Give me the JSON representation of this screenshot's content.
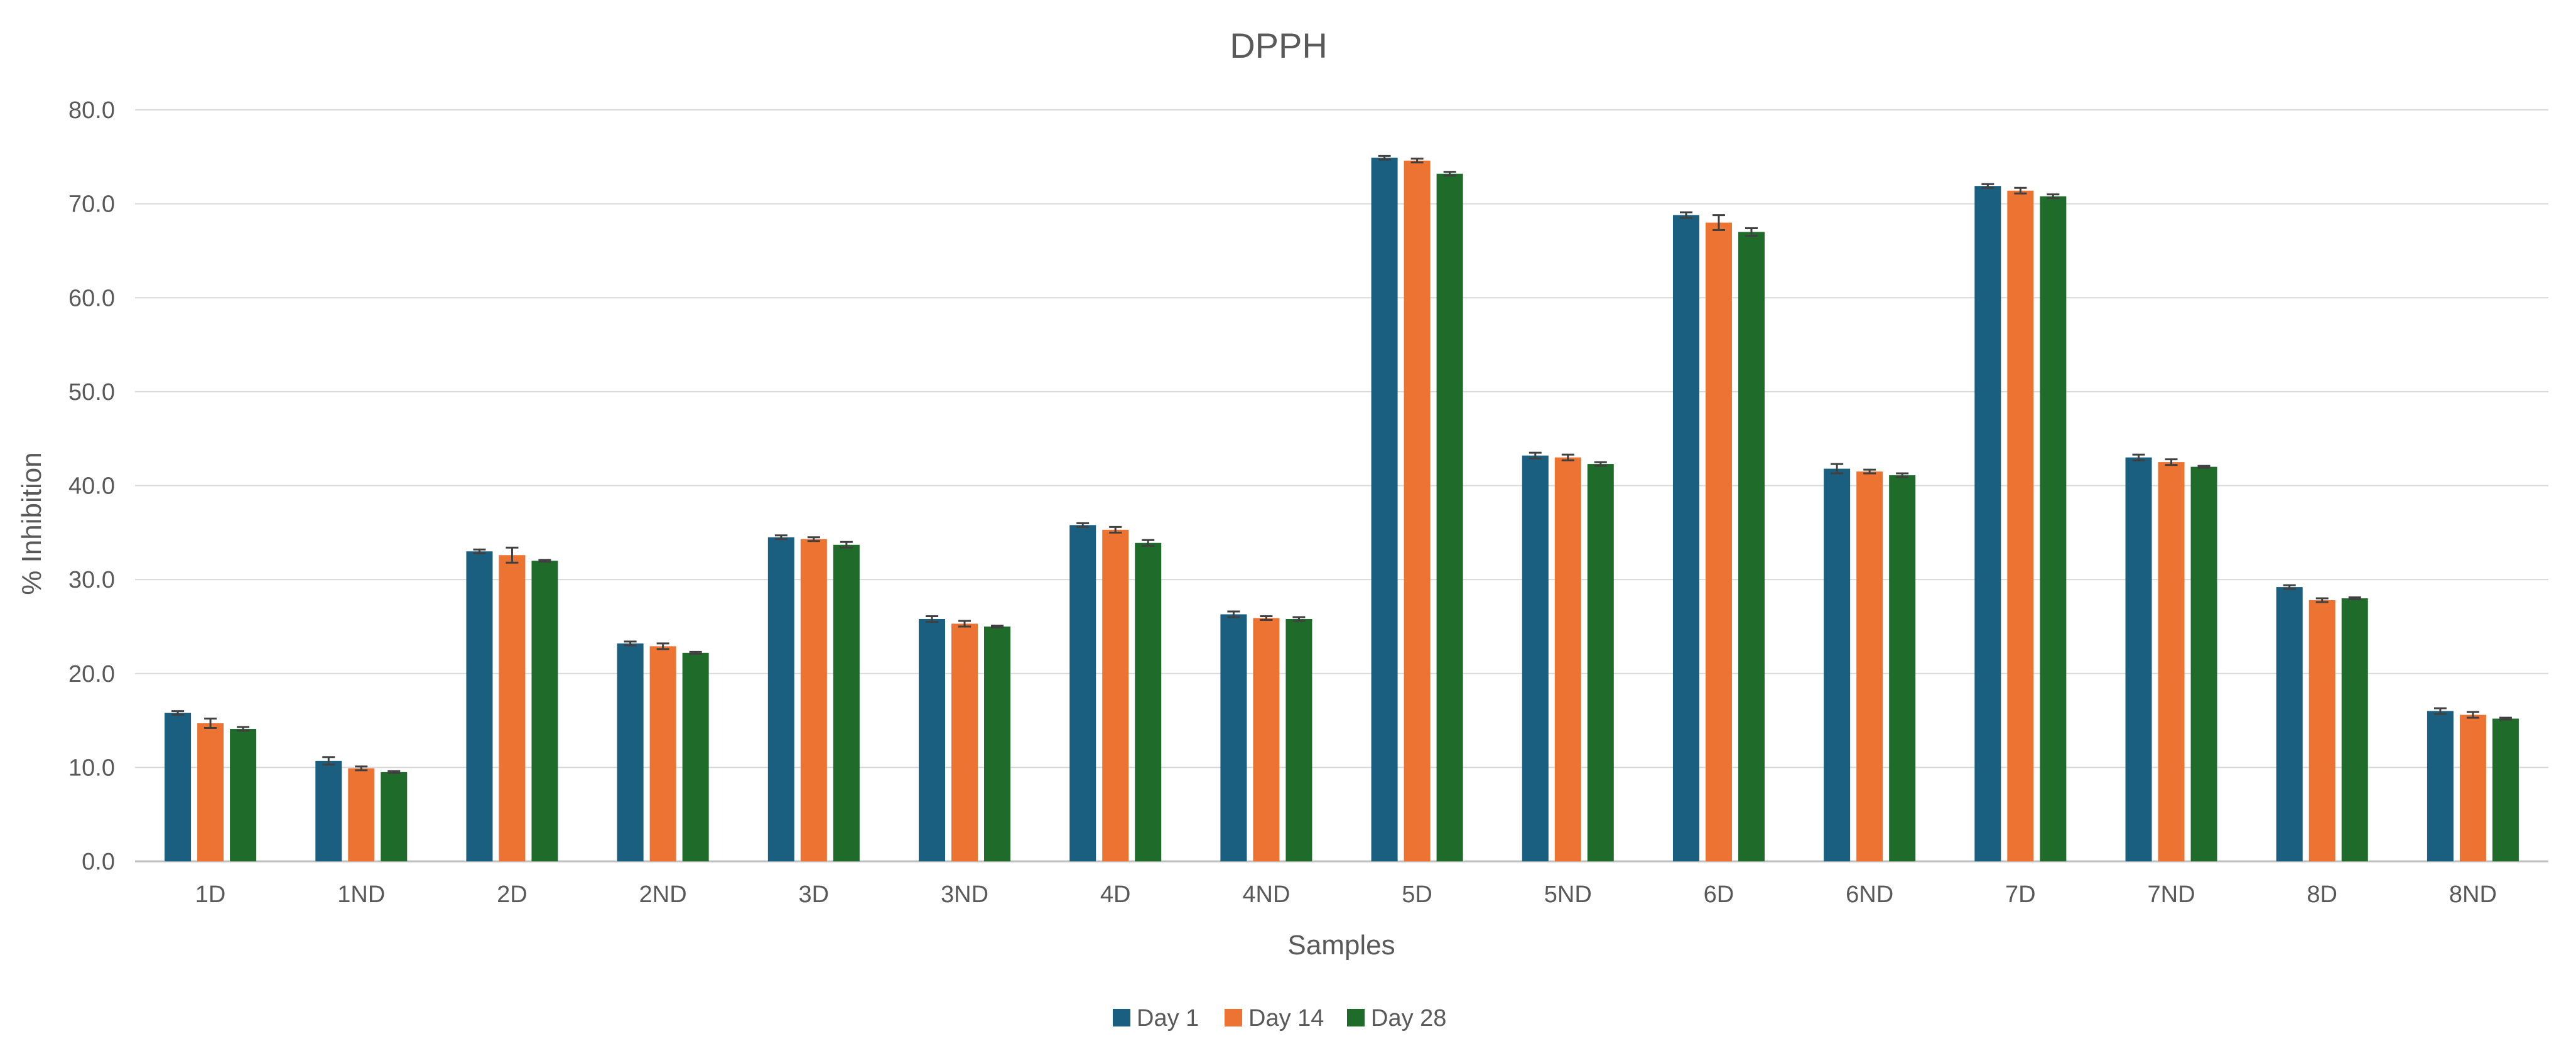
{
  "chart_data": {
    "type": "bar",
    "title": "DPPH",
    "xlabel": "Samples",
    "ylabel": "% Inhibition",
    "ylim": [
      0,
      80
    ],
    "yticks": [
      0,
      10,
      20,
      30,
      40,
      50,
      60,
      70,
      80
    ],
    "ytick_labels": [
      "0.0",
      "10.0",
      "20.0",
      "30.0",
      "40.0",
      "50.0",
      "60.0",
      "70.0",
      "80.0"
    ],
    "grid": true,
    "legend_position": "bottom",
    "error_bars": true,
    "categories": [
      "1D",
      "1ND",
      "2D",
      "2ND",
      "3D",
      "3ND",
      "4D",
      "4ND",
      "5D",
      "5ND",
      "6D",
      "6ND",
      "7D",
      "7ND",
      "8D",
      "8ND"
    ],
    "series": [
      {
        "name": "Day 1",
        "color": "#1a5f80",
        "values": [
          15.8,
          10.7,
          33.0,
          23.2,
          34.5,
          25.8,
          35.8,
          26.3,
          74.9,
          43.2,
          68.8,
          41.8,
          71.9,
          43.0,
          29.2,
          16.0
        ],
        "errors": [
          0.2,
          0.4,
          0.2,
          0.2,
          0.2,
          0.3,
          0.2,
          0.3,
          0.2,
          0.3,
          0.3,
          0.5,
          0.2,
          0.3,
          0.2,
          0.3
        ]
      },
      {
        "name": "Day 14",
        "color": "#ed7332",
        "values": [
          14.7,
          9.9,
          32.6,
          22.9,
          34.3,
          25.3,
          35.3,
          25.9,
          74.6,
          43.0,
          68.0,
          41.5,
          71.4,
          42.5,
          27.8,
          15.6
        ],
        "errors": [
          0.5,
          0.2,
          0.8,
          0.3,
          0.2,
          0.3,
          0.3,
          0.2,
          0.2,
          0.3,
          0.8,
          0.2,
          0.3,
          0.3,
          0.2,
          0.3
        ]
      },
      {
        "name": "Day 28",
        "color": "#1e6b2a",
        "values": [
          14.1,
          9.5,
          32.0,
          22.2,
          33.7,
          25.0,
          33.9,
          25.8,
          73.2,
          42.3,
          67.0,
          41.1,
          70.8,
          42.0,
          28.0,
          15.2
        ],
        "errors": [
          0.2,
          0.1,
          0.1,
          0.1,
          0.3,
          0.1,
          0.3,
          0.2,
          0.2,
          0.2,
          0.4,
          0.2,
          0.2,
          0.1,
          0.1,
          0.1
        ]
      }
    ]
  }
}
